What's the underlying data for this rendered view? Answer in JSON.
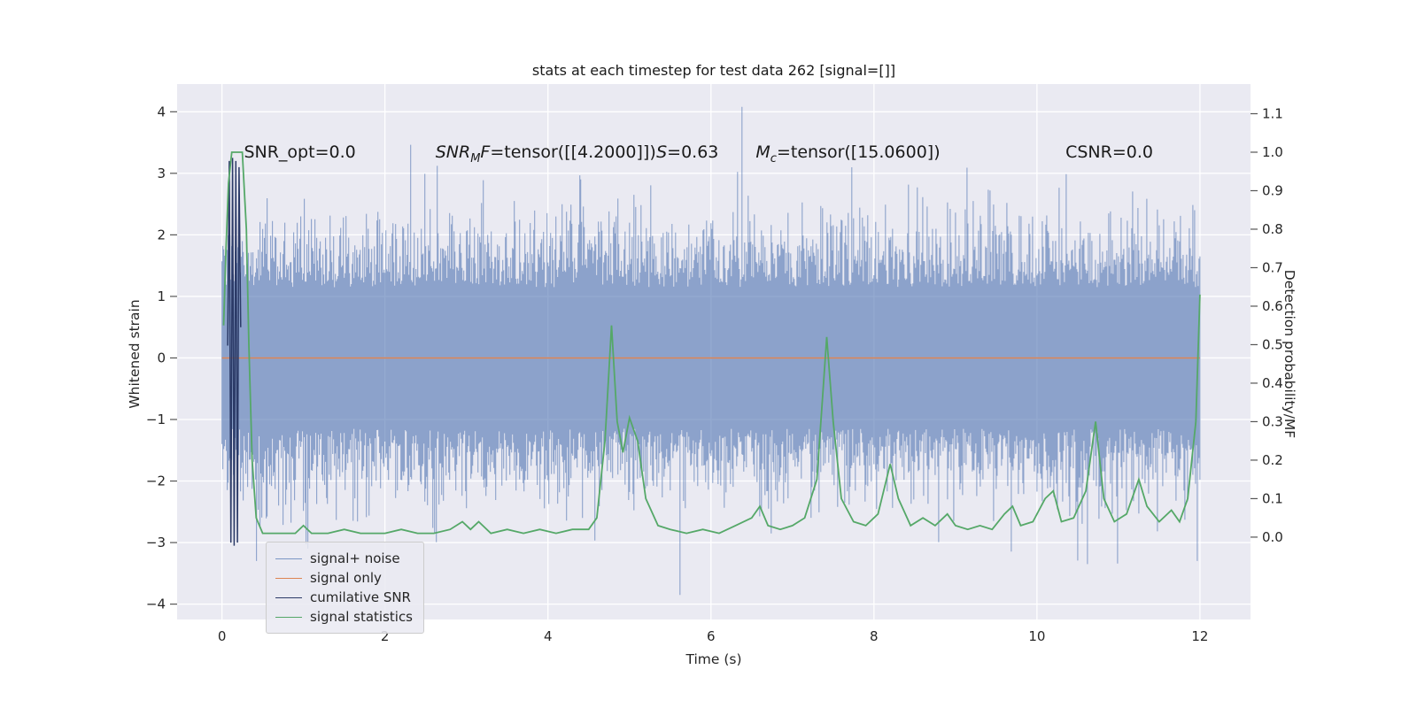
{
  "figure": {
    "background": "#ffffff",
    "plot_background": "#eaeaf2",
    "grid_color": "#ffffff",
    "tick_color": "#555555",
    "text_color": "#262626"
  },
  "chart_data": {
    "type": "line",
    "title": "stats at each timestep for test data 262 [signal=[]]",
    "xlabel": "Time (s)",
    "ylabel_left": "Whitened strain",
    "ylabel_right": "Detection probability/MF",
    "xlim": [
      -0.55,
      12.62
    ],
    "ylim_left": [
      -4.25,
      4.45
    ],
    "ylim_right": [
      -0.214,
      1.177
    ],
    "grid": true,
    "x_ticks": {
      "values": [
        0,
        2,
        4,
        6,
        8,
        10,
        12
      ],
      "labels": [
        "0",
        "2",
        "4",
        "6",
        "8",
        "10",
        "12"
      ]
    },
    "y_ticks_left": {
      "values": [
        -4,
        -3,
        -2,
        -1,
        0,
        1,
        2,
        3,
        4
      ],
      "labels": [
        "−4",
        "−3",
        "−2",
        "−1",
        "0",
        "1",
        "2",
        "3",
        "4"
      ]
    },
    "y_ticks_right": {
      "values": [
        0.0,
        0.1,
        0.2,
        0.3,
        0.4,
        0.5,
        0.6,
        0.7,
        0.8,
        0.9,
        1.0,
        1.1
      ],
      "labels": [
        "0.0",
        "0.1",
        "0.2",
        "0.3",
        "0.4",
        "0.5",
        "0.6",
        "0.7",
        "0.8",
        "0.9",
        "1.0",
        "1.1"
      ]
    },
    "legend": {
      "position": "lower left",
      "entries": [
        "signal+ noise",
        "signal only",
        "cumilative SNR",
        "signal statistics"
      ]
    },
    "annotations": [
      {
        "x": 0.27,
        "y": 3.26,
        "segments": [
          {
            "text": "SNR_opt=0.0",
            "style": "normal"
          }
        ]
      },
      {
        "x": 2.62,
        "y": 3.26,
        "segments": [
          {
            "text": "SNR",
            "style": "italic"
          },
          {
            "text": "M",
            "style": "sub"
          },
          {
            "text": "F",
            "style": "italic"
          },
          {
            "text": "=tensor([[4.2000]])",
            "style": "normal"
          }
        ]
      },
      {
        "x": 5.33,
        "y": 3.26,
        "segments": [
          {
            "text": "S",
            "style": "italic"
          },
          {
            "text": "=0.63",
            "style": "normal"
          }
        ]
      },
      {
        "x": 6.55,
        "y": 3.26,
        "segments": [
          {
            "text": "M",
            "style": "italic"
          },
          {
            "text": "c",
            "style": "sub"
          },
          {
            "text": "=tensor([15.0600])",
            "style": "normal"
          }
        ]
      },
      {
        "x": 10.35,
        "y": 3.26,
        "segments": [
          {
            "text": "CSNR=0.0",
            "style": "normal"
          }
        ]
      }
    ],
    "series": [
      {
        "name": "signal+ noise",
        "axis": "left",
        "color": "#4C72B0",
        "opacity": 0.6,
        "type": "noise_band",
        "x_range": [
          0,
          12
        ],
        "generation": {
          "seed": 1337,
          "columns": 1105,
          "base_band": 1.15,
          "tail_scale": 0.62,
          "spike_prob": 0.012,
          "spike_extra_max": 1.5,
          "clamp": 3.95
        },
        "notable_points": [
          {
            "x": 6.38,
            "y": 4.08
          },
          {
            "x": 5.62,
            "y": -3.85
          },
          {
            "x": 0.42,
            "y": -3.3
          },
          {
            "x": 1.05,
            "y": -3.1
          },
          {
            "x": 10.62,
            "y": -3.35
          },
          {
            "x": 11.97,
            "y": -3.3
          }
        ]
      },
      {
        "name": "signal only",
        "axis": "left",
        "color": "#DD8452",
        "type": "line",
        "width": 1.5,
        "points": [
          [
            0,
            0
          ],
          [
            12,
            0
          ]
        ]
      },
      {
        "name": "cumilative SNR",
        "axis": "left",
        "color": "#2B3A67",
        "type": "line",
        "width": 1.5,
        "points": [
          [
            0.07,
            0.2
          ],
          [
            0.09,
            3.2
          ],
          [
            0.11,
            -3.0
          ],
          [
            0.13,
            3.25
          ],
          [
            0.15,
            -3.05
          ],
          [
            0.17,
            3.2
          ],
          [
            0.19,
            -3.0
          ],
          [
            0.21,
            3.1
          ],
          [
            0.23,
            0.5
          ]
        ]
      },
      {
        "name": "signal statistics",
        "axis": "right",
        "color": "#55A868",
        "type": "line",
        "width": 1.8,
        "points": [
          [
            0.02,
            0.55
          ],
          [
            0.05,
            0.75
          ],
          [
            0.08,
            0.92
          ],
          [
            0.12,
            1.0
          ],
          [
            0.25,
            1.0
          ],
          [
            0.3,
            0.8
          ],
          [
            0.33,
            0.5
          ],
          [
            0.37,
            0.2
          ],
          [
            0.42,
            0.05
          ],
          [
            0.5,
            0.01
          ],
          [
            0.7,
            0.01
          ],
          [
            0.9,
            0.01
          ],
          [
            1.0,
            0.03
          ],
          [
            1.1,
            0.01
          ],
          [
            1.3,
            0.01
          ],
          [
            1.5,
            0.02
          ],
          [
            1.7,
            0.01
          ],
          [
            2.0,
            0.01
          ],
          [
            2.2,
            0.02
          ],
          [
            2.4,
            0.01
          ],
          [
            2.6,
            0.01
          ],
          [
            2.8,
            0.02
          ],
          [
            2.95,
            0.04
          ],
          [
            3.05,
            0.02
          ],
          [
            3.15,
            0.04
          ],
          [
            3.3,
            0.01
          ],
          [
            3.5,
            0.02
          ],
          [
            3.7,
            0.01
          ],
          [
            3.9,
            0.02
          ],
          [
            4.1,
            0.01
          ],
          [
            4.3,
            0.02
          ],
          [
            4.5,
            0.02
          ],
          [
            4.6,
            0.05
          ],
          [
            4.7,
            0.25
          ],
          [
            4.78,
            0.55
          ],
          [
            4.85,
            0.3
          ],
          [
            4.92,
            0.22
          ],
          [
            5.0,
            0.31
          ],
          [
            5.1,
            0.25
          ],
          [
            5.2,
            0.1
          ],
          [
            5.35,
            0.03
          ],
          [
            5.5,
            0.02
          ],
          [
            5.7,
            0.01
          ],
          [
            5.9,
            0.02
          ],
          [
            6.1,
            0.01
          ],
          [
            6.3,
            0.03
          ],
          [
            6.5,
            0.05
          ],
          [
            6.6,
            0.08
          ],
          [
            6.7,
            0.03
          ],
          [
            6.85,
            0.02
          ],
          [
            7.0,
            0.03
          ],
          [
            7.15,
            0.05
          ],
          [
            7.3,
            0.15
          ],
          [
            7.42,
            0.52
          ],
          [
            7.5,
            0.3
          ],
          [
            7.6,
            0.1
          ],
          [
            7.75,
            0.04
          ],
          [
            7.9,
            0.03
          ],
          [
            8.05,
            0.06
          ],
          [
            8.2,
            0.19
          ],
          [
            8.3,
            0.1
          ],
          [
            8.45,
            0.03
          ],
          [
            8.6,
            0.05
          ],
          [
            8.75,
            0.03
          ],
          [
            8.9,
            0.06
          ],
          [
            9.0,
            0.03
          ],
          [
            9.15,
            0.02
          ],
          [
            9.3,
            0.03
          ],
          [
            9.45,
            0.02
          ],
          [
            9.6,
            0.06
          ],
          [
            9.7,
            0.08
          ],
          [
            9.8,
            0.03
          ],
          [
            9.95,
            0.04
          ],
          [
            10.1,
            0.1
          ],
          [
            10.2,
            0.12
          ],
          [
            10.3,
            0.04
          ],
          [
            10.45,
            0.05
          ],
          [
            10.6,
            0.12
          ],
          [
            10.72,
            0.3
          ],
          [
            10.82,
            0.1
          ],
          [
            10.95,
            0.04
          ],
          [
            11.1,
            0.06
          ],
          [
            11.25,
            0.15
          ],
          [
            11.35,
            0.08
          ],
          [
            11.5,
            0.04
          ],
          [
            11.65,
            0.07
          ],
          [
            11.75,
            0.04
          ],
          [
            11.85,
            0.1
          ],
          [
            11.95,
            0.3
          ],
          [
            12.0,
            0.63
          ]
        ]
      }
    ]
  }
}
